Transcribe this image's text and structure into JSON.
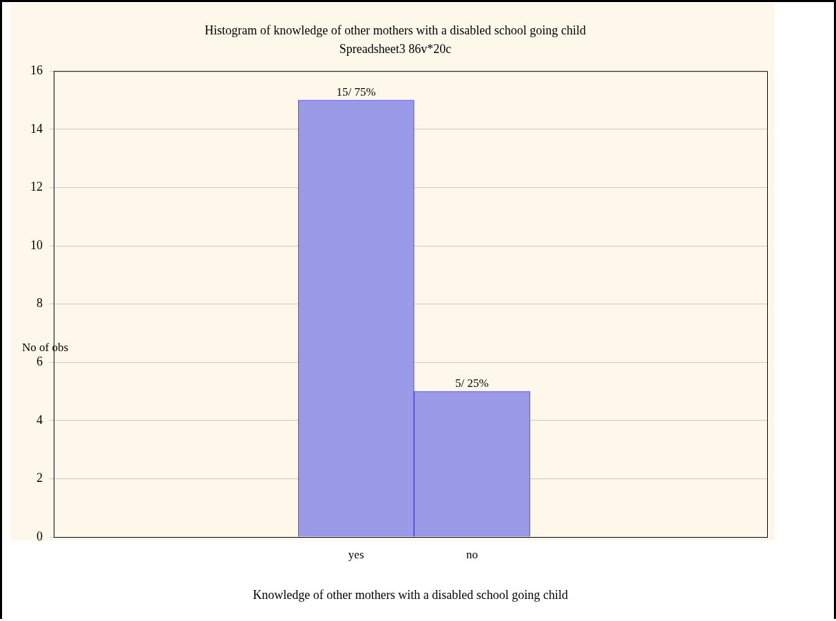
{
  "chart_data": {
    "type": "bar",
    "title": "Histogram of knowledge of other mothers with a disabled school going child",
    "subtitle": "Spreadsheet3 86v*20c",
    "xlabel": "Knowledge of other mothers with a disabled school going child",
    "ylabel": "No of obs",
    "categories": [
      "yes",
      "no"
    ],
    "values": [
      15,
      5
    ],
    "value_labels": [
      "15/ 75%",
      "5/ 25%"
    ],
    "color": "#9a9ae8",
    "ylim": [
      0,
      16
    ],
    "yticks": [
      0,
      2,
      4,
      6,
      8,
      10,
      12,
      14,
      16
    ],
    "grid": "y",
    "legend": false
  }
}
